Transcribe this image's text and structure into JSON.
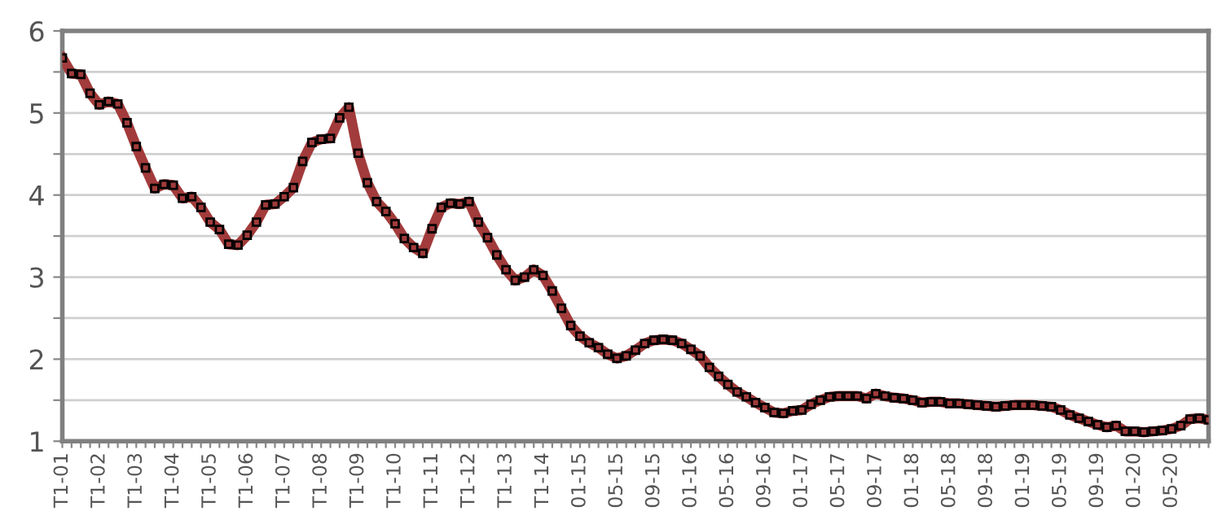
{
  "chart_data": {
    "type": "line",
    "categories": [
      "T1-01",
      null,
      null,
      null,
      "T1-02",
      null,
      null,
      null,
      "T1-03",
      null,
      null,
      null,
      "T1-04",
      null,
      null,
      null,
      "T1-05",
      null,
      null,
      null,
      "T1-06",
      null,
      null,
      null,
      "T1-07",
      null,
      null,
      null,
      "T1-08",
      null,
      null,
      null,
      "T1-09",
      null,
      null,
      null,
      "T1-10",
      null,
      null,
      null,
      "T1-11",
      null,
      null,
      null,
      "T1-12",
      null,
      null,
      null,
      "T1-13",
      null,
      null,
      null,
      "T1-14",
      null,
      null,
      null,
      "01-15",
      null,
      null,
      null,
      "05-15",
      null,
      null,
      null,
      "09-15",
      null,
      null,
      null,
      "01-16",
      null,
      null,
      null,
      "05-16",
      null,
      null,
      null,
      "09-16",
      null,
      null,
      null,
      "01-17",
      null,
      null,
      null,
      "05-17",
      null,
      null,
      null,
      "09-17",
      null,
      null,
      null,
      "01-18",
      null,
      null,
      null,
      "05-18",
      null,
      null,
      null,
      "09-18",
      null,
      null,
      null,
      "01-19",
      null,
      null,
      null,
      "05-19",
      null,
      null,
      null,
      "09-19",
      null,
      null,
      null,
      "01-20",
      null,
      null,
      null,
      "05-20",
      null,
      null,
      null,
      null
    ],
    "series": [
      {
        "color": "#a23b3b",
        "values": [
          5.67,
          5.48,
          5.47,
          5.24,
          5.1,
          5.14,
          5.11,
          4.88,
          4.59,
          4.33,
          4.08,
          4.13,
          4.12,
          3.96,
          3.98,
          3.85,
          3.67,
          3.58,
          3.4,
          3.39,
          3.51,
          3.67,
          3.88,
          3.89,
          3.98,
          4.09,
          4.41,
          4.64,
          4.68,
          4.69,
          4.94,
          5.07,
          4.51,
          4.15,
          3.92,
          3.8,
          3.65,
          3.47,
          3.36,
          3.29,
          3.59,
          3.85,
          3.9,
          3.89,
          3.92,
          3.67,
          3.48,
          3.27,
          3.09,
          2.96,
          3.0,
          3.09,
          3.02,
          2.83,
          2.62,
          2.41,
          2.28,
          2.2,
          2.14,
          2.06,
          2.01,
          2.04,
          2.11,
          2.19,
          2.23,
          2.24,
          2.23,
          2.19,
          2.12,
          2.04,
          1.9,
          1.79,
          1.69,
          1.6,
          1.54,
          1.47,
          1.41,
          1.35,
          1.34,
          1.37,
          1.38,
          1.45,
          1.5,
          1.54,
          1.55,
          1.55,
          1.55,
          1.52,
          1.58,
          1.55,
          1.53,
          1.52,
          1.5,
          1.47,
          1.48,
          1.48,
          1.46,
          1.46,
          1.45,
          1.44,
          1.43,
          1.42,
          1.43,
          1.44,
          1.44,
          1.44,
          1.43,
          1.42,
          1.38,
          1.32,
          1.28,
          1.24,
          1.2,
          1.17,
          1.19,
          1.12,
          1.12,
          1.11,
          1.12,
          1.13,
          1.15,
          1.19,
          1.27,
          1.28,
          1.26
        ]
      }
    ],
    "ylim": [
      1,
      6
    ],
    "yticks": [
      1,
      {
        "value": 1.5,
        "label": null
      },
      2,
      {
        "value": 2.5,
        "label": null
      },
      3,
      {
        "value": 3.5,
        "label": null
      },
      4,
      {
        "value": 4.5,
        "label": null
      },
      5,
      {
        "value": 5.5,
        "label": null
      },
      6
    ],
    "grid": "y",
    "marker": "square",
    "line_style": "solid"
  }
}
